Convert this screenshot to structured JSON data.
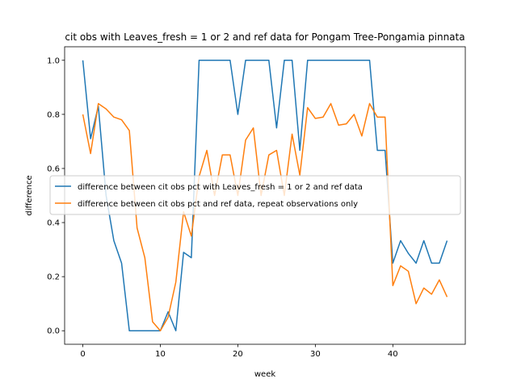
{
  "chart_data": {
    "type": "line",
    "title": "cit obs with Leaves_fresh = 1 or 2 and ref data for Pongam Tree-Pongamia pinnata",
    "xlabel": "week",
    "ylabel": "difference",
    "xlim": [
      -2.35,
      49.35
    ],
    "ylim": [
      -0.05,
      1.05
    ],
    "x_ticks": [
      0,
      10,
      20,
      30,
      40
    ],
    "y_ticks": [
      0.0,
      0.2,
      0.4,
      0.6,
      0.8,
      1.0
    ],
    "x_tick_labels": [
      "0",
      "10",
      "20",
      "30",
      "40"
    ],
    "y_tick_labels": [
      "0.0",
      "0.2",
      "0.4",
      "0.6",
      "0.8",
      "1.0"
    ],
    "grid": false,
    "legend_position": "center-right",
    "x": [
      0,
      1,
      2,
      3,
      4,
      5,
      6,
      7,
      8,
      9,
      10,
      11,
      12,
      13,
      14,
      15,
      16,
      17,
      18,
      19,
      20,
      21,
      22,
      23,
      24,
      25,
      26,
      27,
      28,
      29,
      30,
      31,
      32,
      33,
      34,
      35,
      36,
      37,
      38,
      39,
      40,
      41,
      42,
      43,
      44,
      45,
      46,
      47
    ],
    "series": [
      {
        "name": "difference between cit obs pct with Leaves_fresh = 1 or 2 and ref data",
        "color": "#1f77b4",
        "values": [
          1.0,
          0.71,
          0.83,
          0.5,
          0.333,
          0.25,
          0.0,
          0.0,
          0.0,
          0.0,
          0.0,
          0.07,
          0.0,
          0.29,
          0.27,
          1.0,
          1.0,
          1.0,
          1.0,
          1.0,
          0.8,
          1.0,
          1.0,
          1.0,
          1.0,
          0.75,
          1.0,
          1.0,
          0.667,
          1.0,
          1.0,
          1.0,
          1.0,
          1.0,
          1.0,
          1.0,
          1.0,
          1.0,
          0.667,
          0.667,
          0.25,
          0.333,
          0.286,
          0.25,
          0.333,
          0.25,
          0.25,
          0.333
        ]
      },
      {
        "name": "difference between cit obs pct and ref data, repeat observations only",
        "color": "#ff7f0e",
        "values": [
          0.8,
          0.655,
          0.84,
          0.82,
          0.79,
          0.78,
          0.74,
          0.38,
          0.27,
          0.033,
          0.0,
          0.05,
          0.18,
          0.44,
          0.35,
          0.57,
          0.667,
          0.5,
          0.65,
          0.65,
          0.5,
          0.705,
          0.75,
          0.5,
          0.65,
          0.667,
          0.5,
          0.727,
          0.575,
          0.825,
          0.785,
          0.79,
          0.84,
          0.76,
          0.765,
          0.8,
          0.72,
          0.84,
          0.79,
          0.79,
          0.167,
          0.24,
          0.22,
          0.1,
          0.158,
          0.135,
          0.188,
          0.125
        ]
      }
    ]
  }
}
